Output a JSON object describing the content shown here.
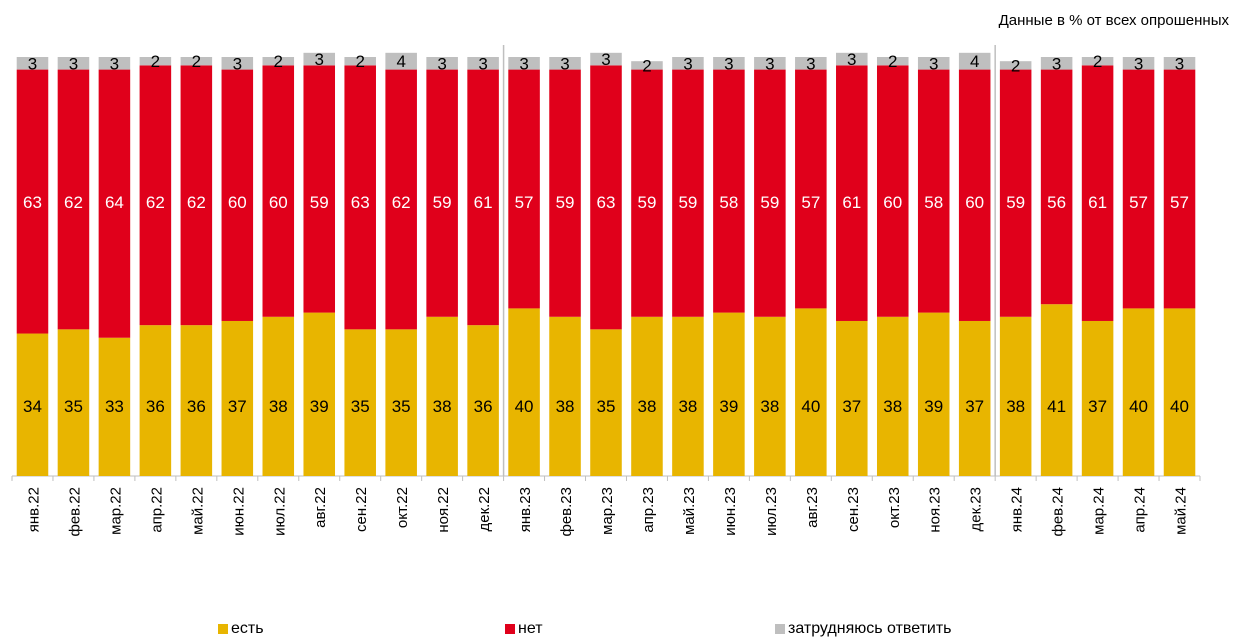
{
  "chart_data": {
    "type": "bar",
    "stacked": true,
    "note": "Данные в % от всех опрошенных",
    "categories": [
      "янв.22",
      "фев.22",
      "мар.22",
      "апр.22",
      "май.22",
      "июн.22",
      "июл.22",
      "авг.22",
      "сен.22",
      "окт.22",
      "ноя.22",
      "дек.22",
      "янв.23",
      "фев.23",
      "мар.23",
      "апр.23",
      "май.23",
      "июн.23",
      "июл.23",
      "авг.23",
      "сен.23",
      "окт.23",
      "ноя.23",
      "дек.23",
      "янв.24",
      "фев.24",
      "мар.24",
      "апр.24",
      "май.24"
    ],
    "series": [
      {
        "name": "есть",
        "color": "#E8B500",
        "values": [
          34,
          35,
          33,
          36,
          36,
          37,
          38,
          39,
          35,
          35,
          38,
          36,
          40,
          38,
          35,
          38,
          38,
          39,
          38,
          40,
          37,
          38,
          39,
          37,
          38,
          41,
          37,
          40,
          40
        ]
      },
      {
        "name": "нет",
        "color": "#E0001B",
        "values": [
          63,
          62,
          64,
          62,
          62,
          60,
          60,
          59,
          63,
          62,
          59,
          61,
          57,
          59,
          63,
          59,
          59,
          58,
          59,
          57,
          61,
          60,
          58,
          60,
          59,
          56,
          61,
          57,
          57
        ]
      },
      {
        "name": "затрудняюсь ответить",
        "color": "#BFBFBF",
        "values": [
          3,
          3,
          3,
          2,
          2,
          3,
          2,
          3,
          2,
          4,
          3,
          3,
          3,
          3,
          3,
          2,
          3,
          3,
          3,
          3,
          3,
          2,
          3,
          4,
          2,
          3,
          2,
          3,
          3
        ]
      }
    ],
    "ylim": [
      0,
      100
    ],
    "separators_after": [
      "дек.22",
      "дек.23"
    ],
    "legend_position": "bottom"
  }
}
